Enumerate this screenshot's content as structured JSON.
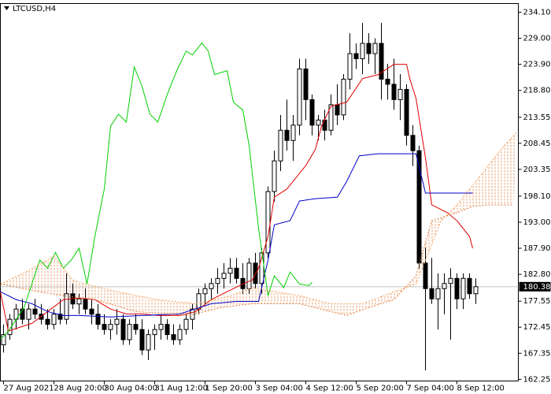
{
  "chart_data": {
    "type": "candlestick",
    "title": "LTCUSD,H4",
    "ylim": [
      161.92,
      235.8
    ],
    "xlim": [
      -0.5,
      81.75
    ],
    "yticks": [
      {
        "value": 234.1,
        "label": "234.10"
      },
      {
        "value": 229,
        "label": "229.00"
      },
      {
        "value": 223.9,
        "label": "223.90"
      },
      {
        "value": 218.8,
        "label": "218.80"
      },
      213.55,
      208.45,
      203.35,
      {
        "value": 198.1,
        "label": "198.10"
      },
      {
        "value": 193,
        "label": "193.00"
      },
      {
        "value": 187.9,
        "label": "187.90"
      },
      {
        "value": 182.8,
        "label": "182.80"
      },
      177.55,
      172.45,
      167.35,
      162.25
    ],
    "xticks": [
      {
        "value": 0,
        "label": "27 Aug 2021"
      },
      {
        "value": 8,
        "label": "28 Aug 20:00"
      },
      {
        "value": 16,
        "label": "30 Aug 04:00"
      },
      {
        "value": 24,
        "label": "31 Aug 12:00"
      },
      {
        "value": 32,
        "label": "1 Sep 20:00"
      },
      {
        "value": 40,
        "label": "3 Sep 04:00"
      },
      {
        "value": 48,
        "label": "4 Sep 12:00"
      },
      {
        "value": 56,
        "label": "5 Sep 20:00"
      },
      {
        "value": 64,
        "label": "7 Sep 04:00"
      },
      {
        "value": 72,
        "label": "8 Sep 12:00"
      }
    ],
    "last_price": 180.38,
    "up_color": "#ffffff",
    "down_color": "#000000",
    "open": [
      169,
      171,
      174,
      176,
      174,
      176,
      175,
      174,
      173,
      175,
      174,
      179,
      177,
      178,
      176,
      175,
      173,
      172,
      173,
      174,
      170,
      173,
      172,
      168,
      171,
      172,
      173,
      171,
      170,
      172,
      174,
      176,
      179,
      180,
      181,
      182,
      183,
      184,
      182,
      180,
      185,
      181,
      187,
      199,
      205,
      211,
      209,
      212,
      223,
      217,
      212,
      213,
      211,
      216,
      214,
      221,
      226,
      225,
      228,
      226,
      228,
      221,
      220,
      217,
      219,
      210,
      207,
      185,
      180,
      178,
      180,
      181,
      182,
      178,
      182,
      179
    ],
    "high": [
      173,
      175,
      177,
      178,
      177,
      178,
      177,
      176,
      176,
      178,
      183,
      181,
      179,
      180,
      178,
      177,
      175,
      174,
      176,
      175,
      174,
      175,
      174,
      172,
      173,
      175,
      174,
      173,
      173,
      175,
      177,
      180,
      181,
      182,
      184,
      185,
      186,
      186,
      185,
      186,
      187,
      188,
      200,
      207,
      214,
      217,
      214,
      225,
      225,
      218,
      214,
      215,
      218,
      220,
      222,
      230,
      228,
      232,
      230,
      229,
      232,
      224,
      225,
      222,
      220,
      212,
      208,
      188,
      186,
      183,
      183,
      184,
      183,
      183,
      183,
      182
    ],
    "low": [
      167.5,
      170,
      172,
      173,
      172,
      174,
      173,
      172,
      172,
      173,
      173,
      176,
      175,
      175,
      173,
      172,
      171,
      170,
      171,
      169,
      169,
      171,
      167,
      166,
      168,
      170,
      170,
      169,
      169,
      171,
      172,
      175,
      177,
      178,
      179,
      180,
      181,
      181,
      179,
      179,
      180,
      179,
      186,
      197,
      203,
      207,
      205,
      210,
      213,
      210,
      209,
      209,
      210,
      212,
      213,
      219,
      223,
      222,
      224,
      222,
      217,
      217,
      215,
      213,
      208,
      204,
      184,
      164,
      177,
      172,
      175,
      170,
      176,
      176,
      178,
      177
    ],
    "close": [
      171,
      174,
      176,
      174,
      176,
      175,
      174,
      173,
      175,
      174,
      179,
      177,
      178,
      176,
      175,
      173,
      172,
      173,
      174,
      170,
      173,
      172,
      168,
      171,
      172,
      173,
      171,
      170,
      172,
      174,
      176,
      179,
      180,
      181,
      182,
      183,
      184,
      182,
      180,
      185,
      181,
      187,
      199,
      205,
      211,
      209,
      212,
      223,
      217,
      212,
      213,
      211,
      216,
      214,
      221,
      226,
      225,
      228,
      226,
      228,
      221,
      220,
      217,
      219,
      210,
      207,
      185,
      180,
      178,
      180,
      181,
      182,
      178,
      182,
      179,
      180.38
    ],
    "series": [
      {
        "color": "#e00000",
        "x": [
          -0.5,
          0.75,
          4.5,
          7,
          9.5,
          12,
          14.5,
          17,
          19.5,
          22,
          24.5,
          28,
          30.5,
          33,
          35.5,
          38,
          39.5,
          40.5,
          42,
          43,
          45,
          46.5,
          48,
          49.5,
          50.5,
          52,
          54.5,
          57,
          59.5,
          62,
          64,
          64.5,
          65.5,
          67,
          68,
          70.5,
          72,
          74,
          74.5
        ],
        "values": [
          179.4,
          171.7,
          173.2,
          175.5,
          177.85,
          178.15,
          177.85,
          176.0,
          175.05,
          175.05,
          174.75,
          174.75,
          175.5,
          177.85,
          179.4,
          180.9,
          181.7,
          184.0,
          190.2,
          197.9,
          199.5,
          201.8,
          204.1,
          207.2,
          211.8,
          215.7,
          216.5,
          221.1,
          221.9,
          223.9,
          223.9,
          221.1,
          217.25,
          205.6,
          196.4,
          194.85,
          193.3,
          190.2,
          187.9
        ]
      },
      {
        "color": "#0000c8",
        "x": [
          -0.5,
          2,
          4.5,
          7,
          9.5,
          12,
          17,
          22,
          28,
          33,
          37,
          40.5,
          42,
          43,
          45.5,
          47,
          49.5,
          53,
          54.5,
          56.5,
          59.5,
          65.5,
          67,
          74.5
        ],
        "values": [
          179.4,
          177.85,
          177.05,
          175.5,
          174.75,
          174.75,
          174.45,
          174.75,
          175.05,
          177.05,
          177.5,
          177.5,
          185.6,
          192.5,
          193.3,
          197.15,
          197.6,
          197.9,
          201.0,
          206.0,
          206.4,
          206.4,
          198.7,
          198.7
        ]
      },
      {
        "color": "#00d000",
        "x": [
          -0.5,
          0.75,
          3.25,
          4.5,
          5.75,
          7,
          8.25,
          9.5,
          10.75,
          12,
          13.25,
          14.5,
          16,
          17,
          18.25,
          19.5,
          20.75,
          22,
          23.25,
          24.5,
          26,
          27.5,
          29,
          30,
          31.5,
          32.5,
          33.5,
          35.5,
          36.5,
          38,
          39,
          40.5,
          42,
          43,
          44.5,
          45.5,
          47,
          48.5,
          49
        ],
        "values": [
          170.1,
          171.65,
          176.3,
          180.9,
          185.6,
          184.0,
          187.1,
          184.0,
          185.6,
          187.9,
          180.9,
          190.2,
          199.5,
          211.8,
          214.15,
          212.6,
          223.4,
          219.55,
          214.15,
          212.6,
          218.0,
          222.65,
          226.5,
          225.75,
          228.1,
          226.5,
          221.9,
          222.65,
          216.5,
          214.95,
          208.0,
          191.75,
          178.6,
          182.5,
          180.2,
          183.25,
          180.9,
          180.6,
          181.2
        ]
      },
      {
        "color": "#f4a460",
        "x": [
          -0.5,
          3.5,
          7,
          8,
          11,
          13,
          18,
          24.5,
          30.5,
          36,
          39.5,
          47,
          52,
          57,
          62,
          65.5,
          67.5,
          69.5,
          72,
          74.5,
          77,
          79.5,
          81.5
        ],
        "values": [
          180.9,
          183.25,
          185.6,
          186.4,
          181.7,
          180.9,
          179.4,
          177.85,
          177.05,
          178.6,
          180.2,
          178.6,
          177.05,
          177.05,
          179.4,
          180.9,
          187.1,
          193.3,
          196.4,
          200.25,
          204.1,
          208.0,
          210.6
        ]
      },
      {
        "color": "#e07a3c",
        "x": [
          -0.5,
          5.5,
          9.5,
          14.5,
          21,
          29.5,
          34.5,
          39.5,
          47,
          52,
          54.5,
          58,
          62,
          65.5,
          68,
          72,
          74.5,
          77,
          81
        ],
        "values": [
          180.9,
          179.4,
          178.6,
          177.85,
          175.5,
          174.75,
          176.3,
          177.05,
          177.05,
          175.5,
          174.75,
          176.3,
          177.85,
          182.5,
          193.3,
          194.85,
          196.1,
          196.4,
          196.4
        ]
      }
    ]
  }
}
